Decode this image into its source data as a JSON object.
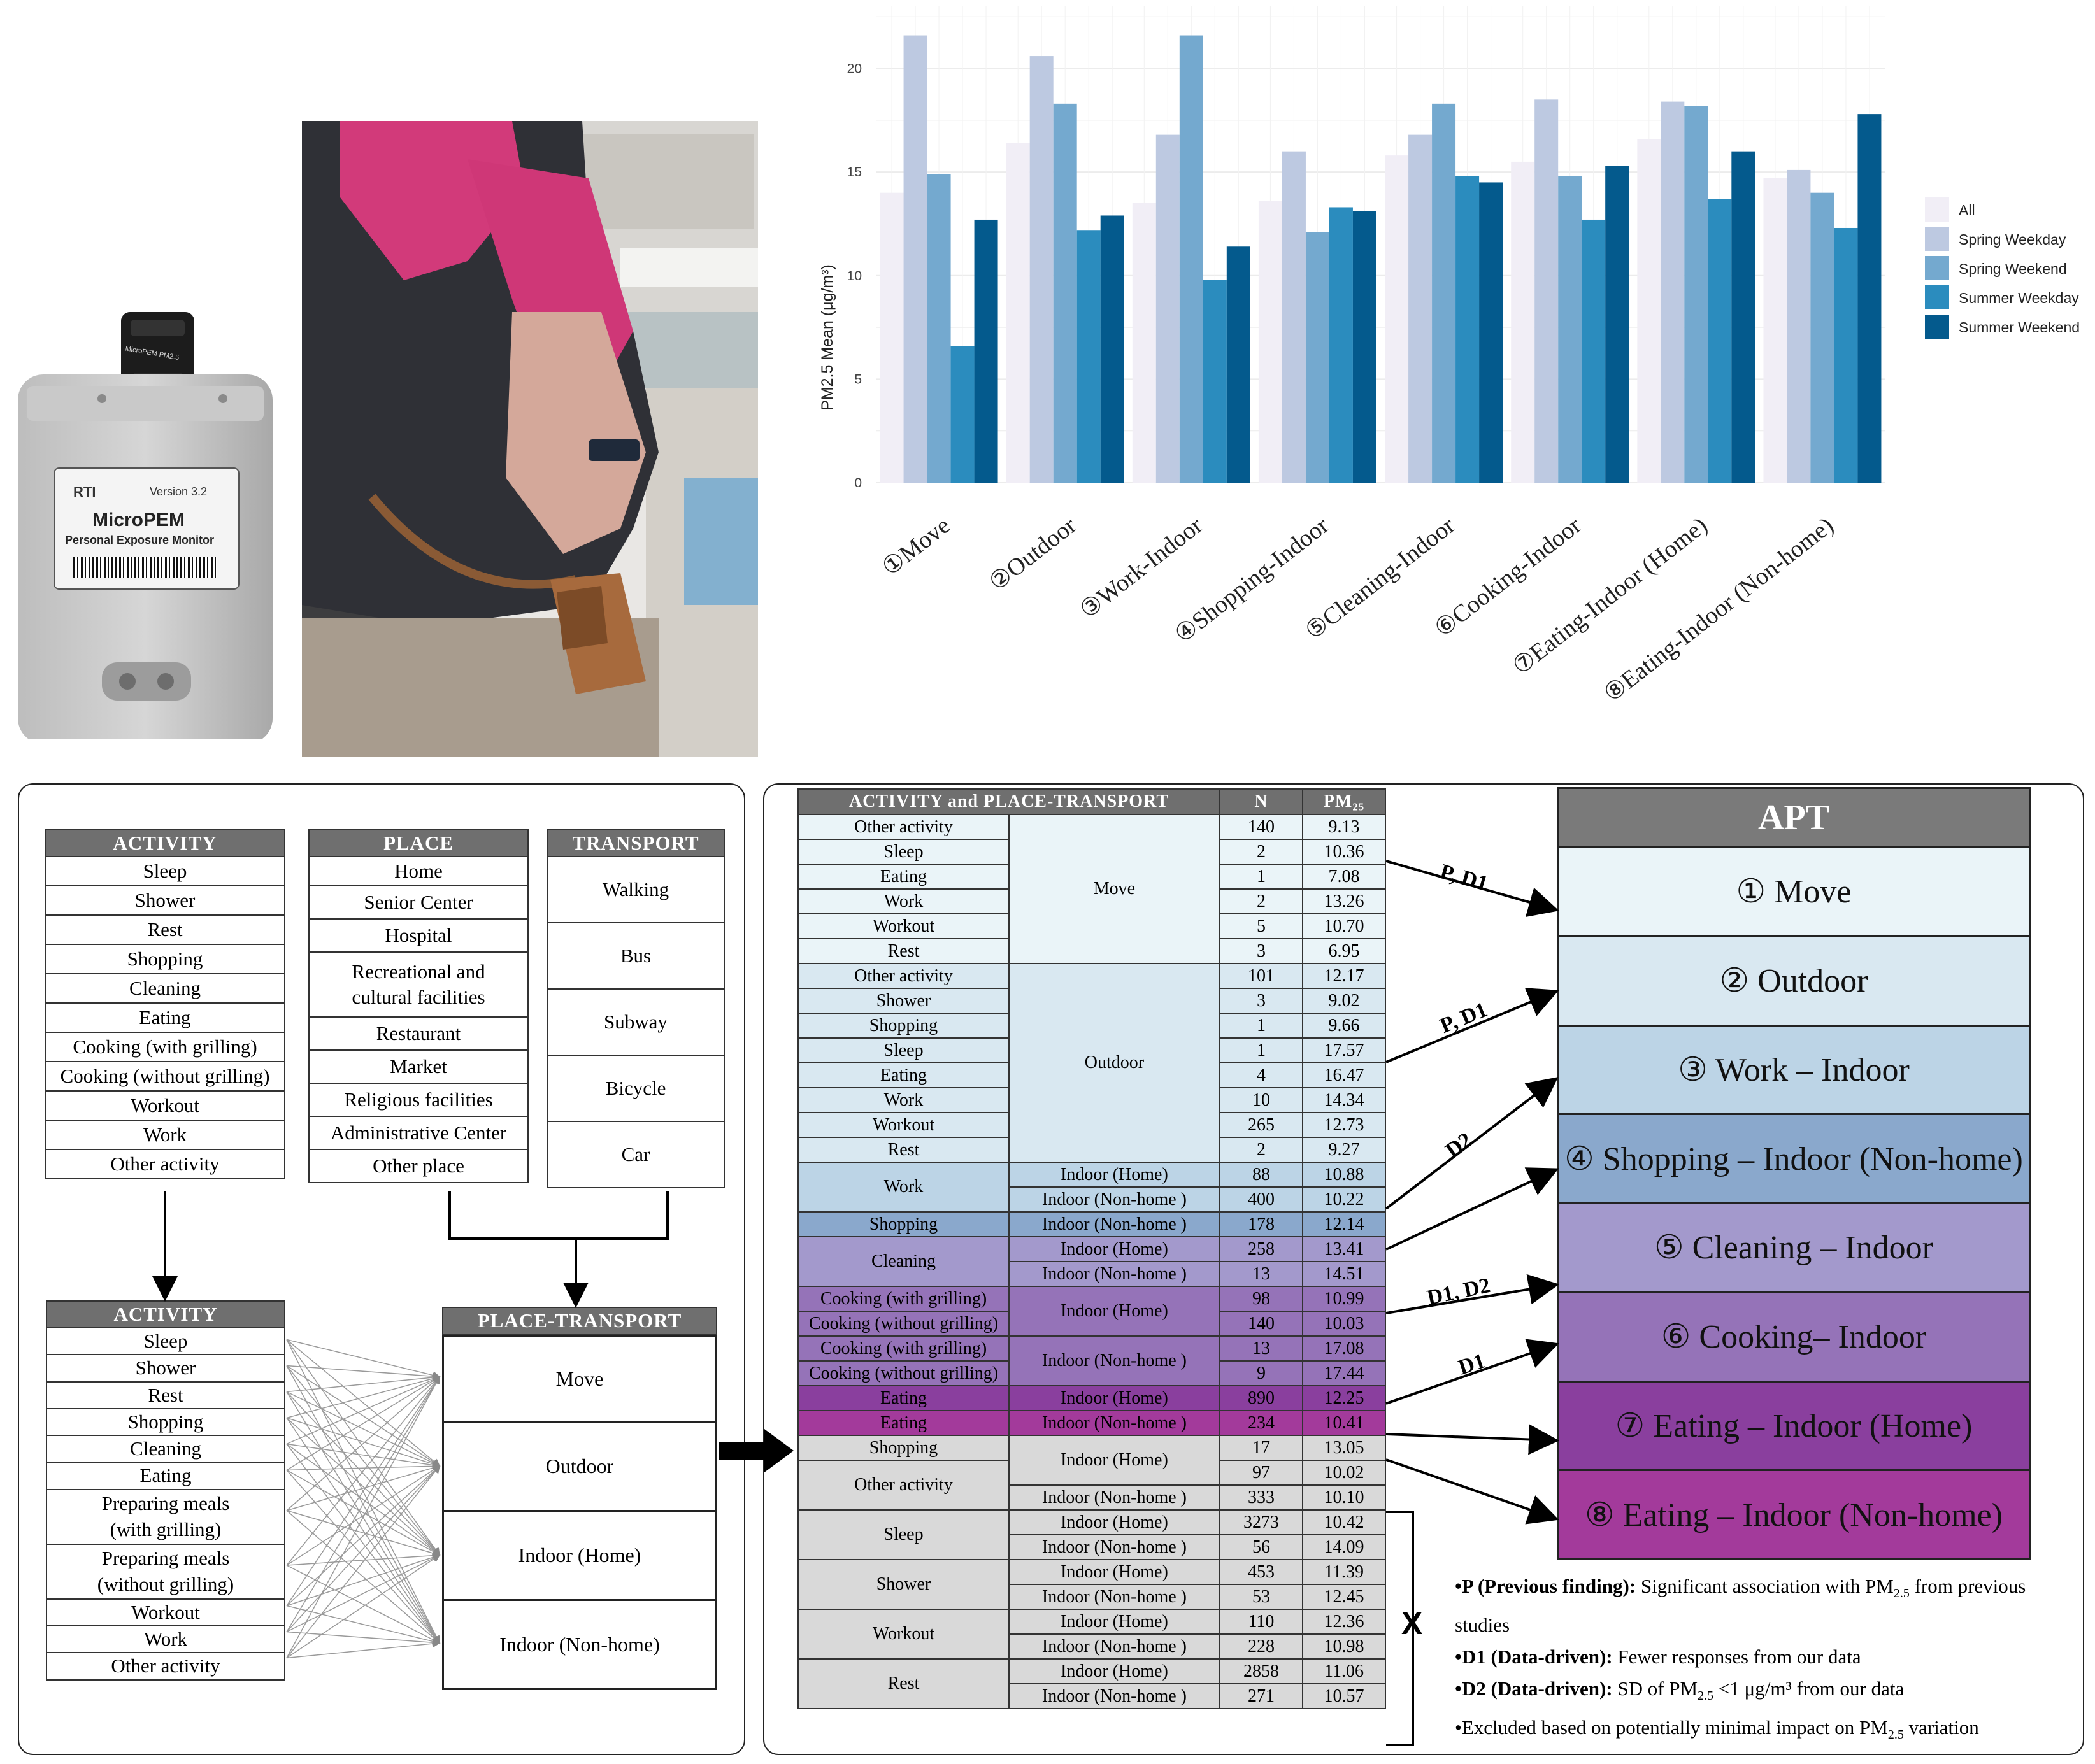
{
  "device": {
    "brand": "RTI",
    "version": "Version 3.2",
    "name": "MicroPEM",
    "subtitle": "Personal Exposure Monitor",
    "cap": "MicroPEM PM2.5"
  },
  "chart_data": {
    "type": "bar",
    "ylabel": "PM2.5 Mean (μg/m³)",
    "ylim": [
      0,
      23
    ],
    "yticks": [
      0,
      5,
      10,
      15,
      20
    ],
    "grid": true,
    "legend_position": "right",
    "categories": [
      "①Move",
      "②Outdoor",
      "③Work-Indoor",
      "④Shopping-Indoor",
      "⑤Cleaning-Indoor",
      "⑥Cooking-Indoor",
      "⑦Eating-Indoor (Home)",
      "⑧Eating-Indoor (Non-home)"
    ],
    "series": [
      {
        "name": "All",
        "color": "#f1eef6",
        "values": [
          14.0,
          16.4,
          13.5,
          13.6,
          15.8,
          15.5,
          16.6,
          14.7
        ]
      },
      {
        "name": "Spring Weekday",
        "color": "#bdc9e1",
        "values": [
          21.6,
          20.6,
          16.8,
          16.0,
          16.8,
          18.5,
          18.4,
          15.1
        ]
      },
      {
        "name": "Spring Weekend",
        "color": "#74a9cf",
        "values": [
          14.9,
          18.3,
          21.6,
          12.1,
          18.3,
          14.8,
          18.2,
          14.0
        ]
      },
      {
        "name": "Summer Weekday",
        "color": "#2b8cbe",
        "values": [
          6.6,
          12.2,
          9.8,
          13.3,
          14.8,
          12.7,
          13.7,
          12.3
        ]
      },
      {
        "name": "Summer Weekend",
        "color": "#045a8d",
        "values": [
          12.7,
          12.9,
          11.4,
          13.1,
          14.5,
          15.3,
          16.0,
          17.8
        ]
      }
    ]
  },
  "activity_list": {
    "header": "ACTIVITY",
    "items": [
      "Sleep",
      "Shower",
      "Rest",
      "Shopping",
      "Cleaning",
      "Eating",
      "Cooking (with grilling)",
      "Cooking (without grilling)",
      "Workout",
      "Work",
      "Other activity"
    ]
  },
  "place_list": {
    "header": "PLACE",
    "items": [
      "Home",
      "Senior Center",
      "Hospital",
      "Recreational and\ncultural facilities",
      "Restaurant",
      "Market",
      "Religious facilities",
      "Administrative Center",
      "Other place"
    ]
  },
  "transport_list": {
    "header": "TRANSPORT",
    "items": [
      "Walking",
      "Bus",
      "Subway",
      "Bicycle",
      "Car"
    ]
  },
  "activity2_list": {
    "header": "ACTIVITY",
    "items": [
      "Sleep",
      "Shower",
      "Rest",
      "Shopping",
      "Cleaning",
      "Eating",
      "Preparing meals\n(with grilling)",
      "Preparing meals\n(without grilling)",
      "Workout",
      "Work",
      "Other activity"
    ]
  },
  "place_transport": {
    "header": "PLACE-TRANSPORT",
    "items": [
      "Move",
      "Outdoor",
      "Indoor (Home)",
      "Indoor (Non-home)"
    ]
  },
  "mapping_table": {
    "header_activity": "ACTIVITY  and  PLACE-TRANSPORT",
    "header_n": "N",
    "header_pm": "PM₂₅",
    "rows": [
      {
        "a": "Other activity",
        "p": "Move",
        "n": "140",
        "pm": "9.13",
        "bg": "#eaf4f8"
      },
      {
        "a": "Sleep",
        "p": "Move",
        "n": "2",
        "pm": "10.36",
        "bg": "#eaf4f8"
      },
      {
        "a": "Eating",
        "p": "Move",
        "n": "1",
        "pm": "7.08",
        "bg": "#eaf4f8"
      },
      {
        "a": "Work",
        "p": "Move",
        "n": "2",
        "pm": "13.26",
        "bg": "#eaf4f8"
      },
      {
        "a": "Workout",
        "p": "Move",
        "n": "5",
        "pm": "10.70",
        "bg": "#eaf4f8"
      },
      {
        "a": "Rest",
        "p": "Move",
        "n": "3",
        "pm": "6.95",
        "bg": "#eaf4f8"
      },
      {
        "a": "Other activity",
        "p": "Outdoor",
        "n": "101",
        "pm": "12.17",
        "bg": "#d9e8f1"
      },
      {
        "a": "Shower",
        "p": "Outdoor",
        "n": "3",
        "pm": "9.02",
        "bg": "#d9e8f1"
      },
      {
        "a": "Shopping",
        "p": "Outdoor",
        "n": "1",
        "pm": "9.66",
        "bg": "#d9e8f1"
      },
      {
        "a": "Sleep",
        "p": "Outdoor",
        "n": "1",
        "pm": "17.57",
        "bg": "#d9e8f1"
      },
      {
        "a": "Eating",
        "p": "Outdoor",
        "n": "4",
        "pm": "16.47",
        "bg": "#d9e8f1"
      },
      {
        "a": "Work",
        "p": "Outdoor",
        "n": "10",
        "pm": "14.34",
        "bg": "#d9e8f1"
      },
      {
        "a": "Workout",
        "p": "Outdoor",
        "n": "265",
        "pm": "12.73",
        "bg": "#d9e8f1"
      },
      {
        "a": "Rest",
        "p": "Outdoor",
        "n": "2",
        "pm": "9.27",
        "bg": "#d9e8f1"
      },
      {
        "a": "Work",
        "p": "Indoor (Home)",
        "n": "88",
        "pm": "10.88",
        "bg": "#bcd4e6"
      },
      {
        "a": "Work",
        "p": "Indoor (Non-home )",
        "n": "400",
        "pm": "10.22",
        "bg": "#bcd4e6"
      },
      {
        "a": "Shopping",
        "p": "Indoor (Non-home )",
        "n": "178",
        "pm": "12.14",
        "bg": "#8aa8cc"
      },
      {
        "a": "Cleaning",
        "p": "Indoor (Home)",
        "n": "258",
        "pm": "13.41",
        "bg": "#a399cc"
      },
      {
        "a": "Cleaning",
        "p": "Indoor (Non-home )",
        "n": "13",
        "pm": "14.51",
        "bg": "#a399cc"
      },
      {
        "a": "Cooking  (with grilling)",
        "p": "Indoor (Home)",
        "n": "98",
        "pm": "10.99",
        "bg": "#9573b8"
      },
      {
        "a": "Cooking  (without grilling)",
        "p": "Indoor (Home)",
        "n": "140",
        "pm": "10.03",
        "bg": "#9573b8"
      },
      {
        "a": "Cooking  (with grilling)",
        "p": "Indoor (Non-home )",
        "n": "13",
        "pm": "17.08",
        "bg": "#9573b8"
      },
      {
        "a": "Cooking  (without grilling)",
        "p": "Indoor (Non-home )",
        "n": "9",
        "pm": "17.44",
        "bg": "#9573b8"
      },
      {
        "a": "Eating",
        "p": "Indoor (Home)",
        "n": "890",
        "pm": "12.25",
        "bg": "#8a3f9e"
      },
      {
        "a": "Eating",
        "p": "Indoor (Non-home )",
        "n": "234",
        "pm": "10.41",
        "bg": "#a33a9b"
      },
      {
        "a": "Shopping",
        "p": "Indoor (Home)",
        "n": "17",
        "pm": "13.05",
        "bg": "#d9d9d9"
      },
      {
        "a": "Other activity",
        "p": "Indoor (Home)",
        "n": "97",
        "pm": "10.02",
        "bg": "#d9d9d9"
      },
      {
        "a": "Other activity",
        "p": "Indoor (Non-home )",
        "n": "333",
        "pm": "10.10",
        "bg": "#d9d9d9"
      },
      {
        "a": "Sleep",
        "p": "Indoor (Home)",
        "n": "3273",
        "pm": "10.42",
        "bg": "#d9d9d9"
      },
      {
        "a": "Sleep",
        "p": "Indoor (Non-home )",
        "n": "56",
        "pm": "14.09",
        "bg": "#d9d9d9"
      },
      {
        "a": "Shower",
        "p": "Indoor (Home)",
        "n": "453",
        "pm": "11.39",
        "bg": "#d9d9d9"
      },
      {
        "a": "Shower",
        "p": "Indoor (Non-home )",
        "n": "53",
        "pm": "12.45",
        "bg": "#d9d9d9"
      },
      {
        "a": "Workout",
        "p": "Indoor (Home)",
        "n": "110",
        "pm": "12.36",
        "bg": "#d9d9d9"
      },
      {
        "a": "Workout",
        "p": "Indoor (Non-home )",
        "n": "228",
        "pm": "10.98",
        "bg": "#d9d9d9"
      },
      {
        "a": "Rest",
        "p": "Indoor (Home)",
        "n": "2858",
        "pm": "11.06",
        "bg": "#d9d9d9"
      },
      {
        "a": "Rest",
        "p": "Indoor (Non-home )",
        "n": "271",
        "pm": "10.57",
        "bg": "#d9d9d9"
      }
    ]
  },
  "apt": {
    "header": "APT",
    "items": [
      {
        "label": "① Move",
        "bg": "#eaf4f8",
        "color": "#111"
      },
      {
        "label": "② Outdoor",
        "bg": "#d9e8f1",
        "color": "#111"
      },
      {
        "label": "③ Work – Indoor",
        "bg": "#bcd4e6",
        "color": "#111"
      },
      {
        "label": "④ Shopping – Indoor (Non-home)",
        "bg": "#8aa8cc",
        "color": "#111"
      },
      {
        "label": "⑤ Cleaning – Indoor",
        "bg": "#a399cc",
        "color": "#111"
      },
      {
        "label": "⑥ Cooking– Indoor",
        "bg": "#9573b8",
        "color": "#111"
      },
      {
        "label": "⑦ Eating – Indoor (Home)",
        "bg": "#8a3f9e",
        "color": "#111"
      },
      {
        "label": "⑧ Eating – Indoor (Non-home)",
        "bg": "#a33a9b",
        "color": "#111"
      }
    ]
  },
  "arrow_labels": [
    "P, D1",
    "P, D1",
    "D2",
    "D1, D2",
    "D1"
  ],
  "excluded_marker": "X",
  "notes": [
    {
      "bold": "•P (Previous finding):",
      "text": " Significant association with PM",
      "sub": "2.5",
      "tail": " from previous studies"
    },
    {
      "bold": "•D1 (Data-driven):",
      "text": " Fewer responses  from our data",
      "sub": "",
      "tail": ""
    },
    {
      "bold": "•D2 (Data-driven):",
      "text": " SD of PM",
      "sub": "2.5",
      "tail": " <1 μg/m³  from our data"
    },
    {
      "bold": "",
      "text": "•Excluded based on potentially minimal impact on PM",
      "sub": "2.5",
      "tail": " variation"
    }
  ]
}
